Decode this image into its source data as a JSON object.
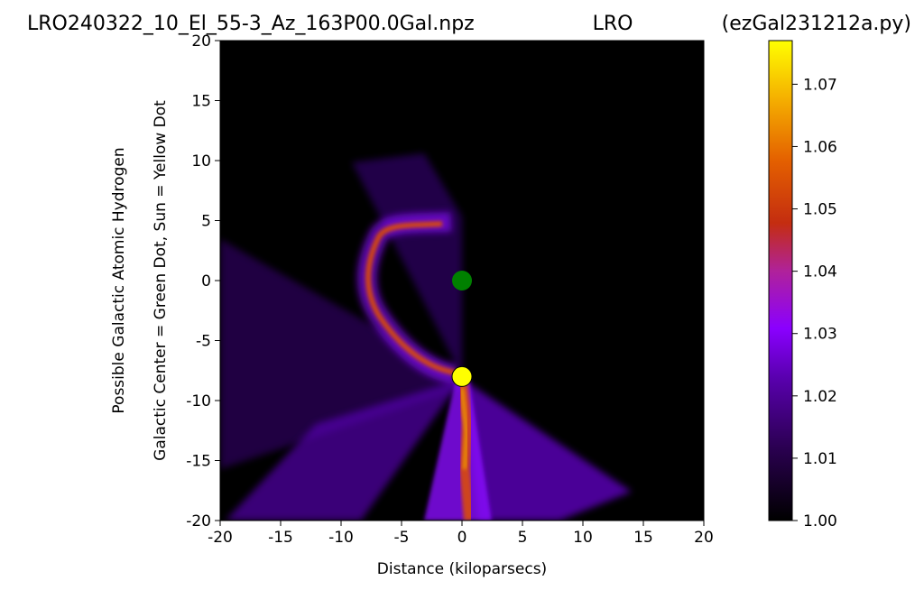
{
  "header": {
    "left_title": "LRO240322_10_El_55-3_Az_163P00.0Gal.npz",
    "center_title": "LRO",
    "right_title": "(ezGal231212a.py)"
  },
  "chart_data": {
    "type": "heatmap",
    "xlabel": "Distance (kiloparsecs)",
    "ylabel_line1": "Possible Galactic Atomic Hydrogen",
    "ylabel_line2": "Galactic Center = Green Dot, Sun = Yellow Dot",
    "xlim": [
      -20,
      20
    ],
    "ylim": [
      -20,
      20
    ],
    "x_ticks": [
      -20,
      -15,
      -10,
      -5,
      0,
      5,
      10,
      15,
      20
    ],
    "y_ticks": [
      -20,
      -15,
      -10,
      -5,
      0,
      5,
      10,
      15,
      20
    ],
    "x_tick_labels": [
      "-20",
      "-15",
      "-10",
      "-5",
      "0",
      "5",
      "10",
      "15",
      "20"
    ],
    "y_tick_labels": [
      "-20",
      "-15",
      "-10",
      "-5",
      "0",
      "5",
      "10",
      "15",
      "20"
    ],
    "colormap": "gnuplot",
    "colorbar": {
      "range": [
        1.0,
        1.077
      ],
      "ticks": [
        1.0,
        1.01,
        1.02,
        1.03,
        1.04,
        1.05,
        1.06,
        1.07
      ],
      "tick_labels": [
        "1.00",
        "1.01",
        "1.02",
        "1.03",
        "1.04",
        "1.05",
        "1.06",
        "1.07"
      ]
    },
    "markers": [
      {
        "name": "Galactic Center",
        "x": 0,
        "y": 0,
        "color": "#008000"
      },
      {
        "name": "Sun",
        "x": 0,
        "y": -8,
        "color": "#ffff00"
      }
    ],
    "background_color": "#000000"
  }
}
